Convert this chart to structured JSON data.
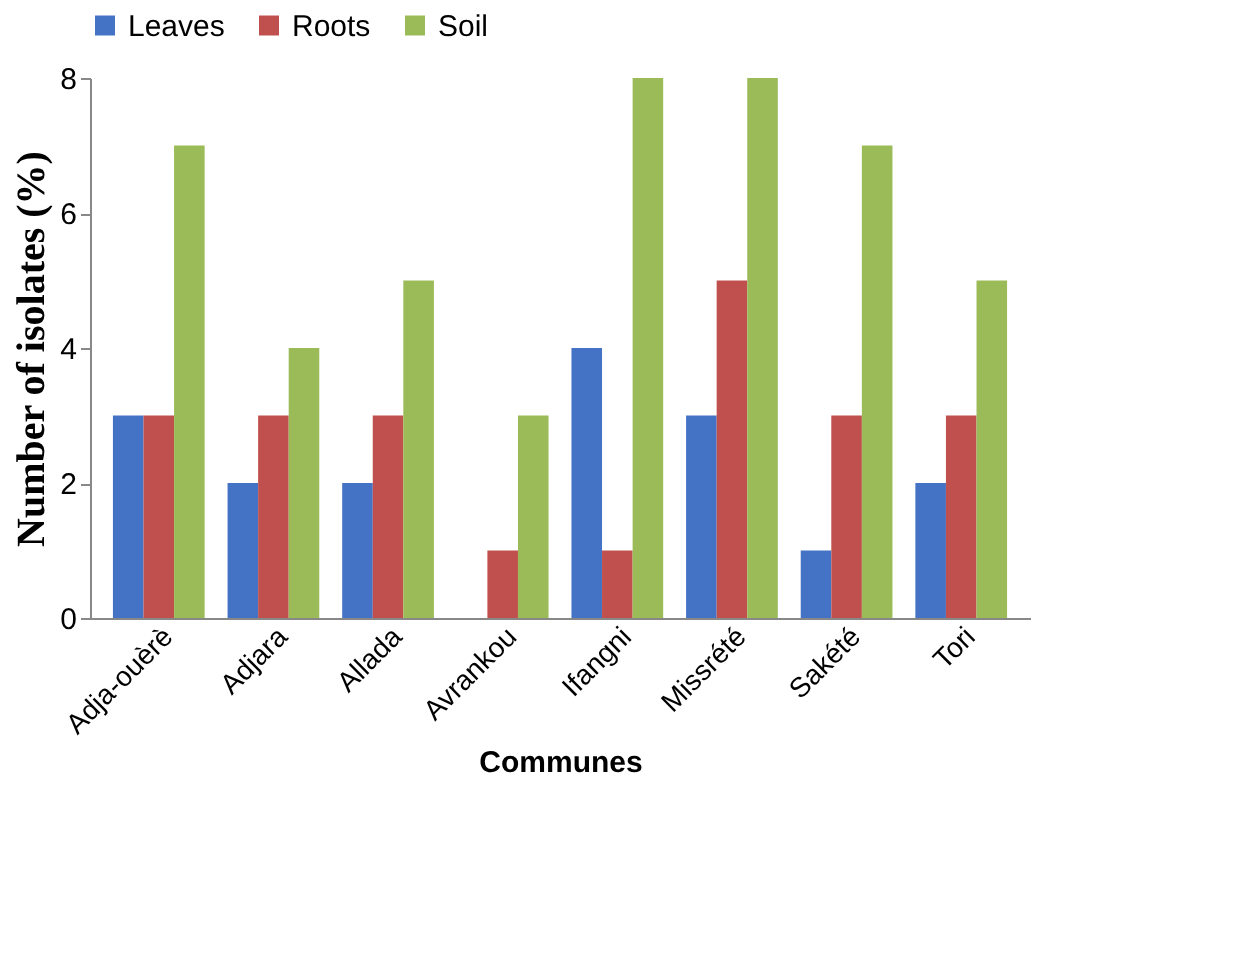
{
  "chart_data": {
    "type": "bar",
    "xlabel": "Communes",
    "ylabel": "Number of isolates (%)",
    "categories": [
      "Adja-ouèrè",
      "Adjara",
      "Allada",
      "Avrankou",
      "Ifangni",
      "Missrété",
      "Sakété",
      "Tori"
    ],
    "series": [
      {
        "name": "Leaves",
        "color": "#4472c4",
        "values": [
          3,
          2,
          2,
          0,
          4,
          3,
          1,
          2
        ]
      },
      {
        "name": "Roots",
        "color": "#c0504d",
        "values": [
          3,
          3,
          3,
          1,
          1,
          5,
          3,
          3
        ]
      },
      {
        "name": "Soil",
        "color": "#9bbb59",
        "values": [
          7,
          4,
          5,
          3,
          8,
          8,
          7,
          5
        ]
      }
    ],
    "ylim": [
      0,
      8
    ],
    "yticks": [
      0,
      2,
      4,
      6,
      8
    ],
    "grid": false,
    "legend": "top"
  }
}
